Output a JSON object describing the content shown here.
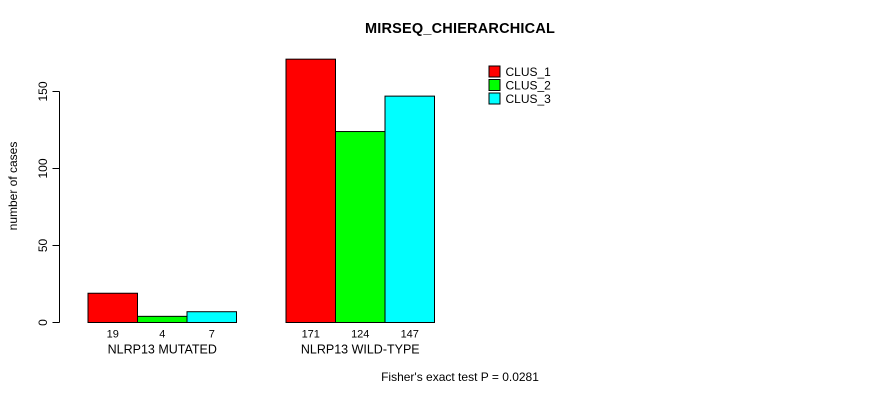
{
  "title": "MIRSEQ_CHIERARCHICAL",
  "footnote": "Fisher's exact test P = 0.0281",
  "chart_data": {
    "type": "bar",
    "grouped": true,
    "title": "MIRSEQ_CHIERARCHICAL",
    "categories": [
      "NLRP13 MUTATED",
      "NLRP13 WILD-TYPE"
    ],
    "series": [
      {
        "name": "CLUS_1",
        "color": "#FF0000",
        "values": [
          19,
          171
        ]
      },
      {
        "name": "CLUS_2",
        "color": "#00FF00",
        "values": [
          4,
          124
        ]
      },
      {
        "name": "CLUS_3",
        "color": "#00FFFF",
        "values": [
          7,
          147
        ]
      }
    ],
    "xlabel": "",
    "ylabel": "number of cases",
    "yticks": [
      0,
      50,
      100,
      150
    ],
    "ylim": [
      0,
      175
    ],
    "grid": false,
    "bar_value_labels": true,
    "bar_border_color": "#000000",
    "legend_position": "top-right",
    "annotation": "Fisher's exact test P = 0.0281"
  }
}
